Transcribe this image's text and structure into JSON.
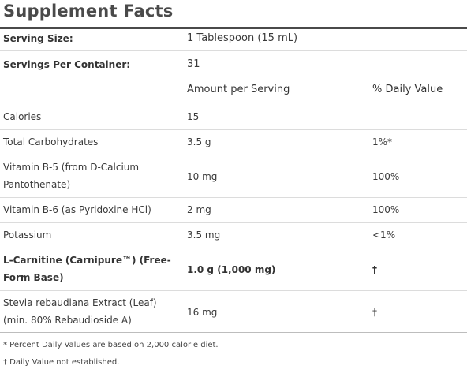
{
  "title": "Supplement Facts",
  "serving": {
    "size_label": "Serving Size:",
    "size_value": "1 Tablespoon (15 mL)",
    "per_container_label": "Servings Per Container:",
    "per_container_value": "31"
  },
  "columns": {
    "amount": "Amount per Serving",
    "daily": "% Daily Value"
  },
  "rows": [
    {
      "name": "Calories",
      "amount": "15",
      "dv": ""
    },
    {
      "name": "Total Carbohydrates",
      "amount": "3.5 g",
      "dv": "1%*"
    },
    {
      "name": "Vitamin B-5 (from D-Calcium Pantothenate)",
      "amount": "10 mg",
      "dv": "100%"
    },
    {
      "name": "Vitamin B-6 (as Pyridoxine HCl)",
      "amount": "2 mg",
      "dv": "100%"
    },
    {
      "name": "Potassium",
      "amount": "3.5 mg",
      "dv": "<1%"
    },
    {
      "name": "L-Carnitine (Carnipure™) (Free-Form Base)",
      "amount": "1.0 g (1,000 mg)",
      "dv": "†"
    },
    {
      "name": "Stevia rebaudiana Extract (Leaf) (min. 80% Rebaudioside A)",
      "amount": "16 mg",
      "dv": "†"
    }
  ],
  "footnotes": {
    "percent": "* Percent Daily Values are based on 2,000 calorie diet.",
    "dagger": "† Daily Value not established."
  }
}
